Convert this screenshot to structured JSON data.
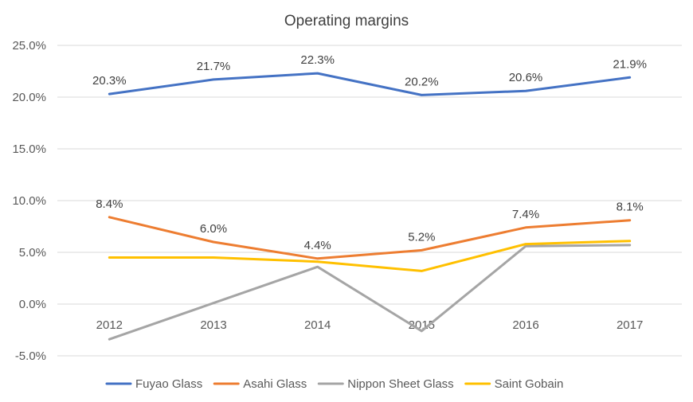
{
  "chart_data": {
    "type": "line",
    "title": "Operating margins",
    "xlabel": "",
    "ylabel": "",
    "categories": [
      "2012",
      "2013",
      "2014",
      "2015",
      "2016",
      "2017"
    ],
    "ylim": [
      -5,
      25
    ],
    "yticks": [
      -5,
      0,
      5,
      10,
      15,
      20,
      25
    ],
    "ytick_labels": [
      "-5.0%",
      "0.0%",
      "5.0%",
      "10.0%",
      "15.0%",
      "20.0%",
      "25.0%"
    ],
    "grid": true,
    "legend_position": "bottom",
    "series": [
      {
        "name": "Fuyao Glass",
        "color": "#4472C4",
        "values": [
          20.3,
          21.7,
          22.3,
          20.2,
          20.6,
          21.9
        ],
        "data_labels": [
          "20.3%",
          "21.7%",
          "22.3%",
          "20.2%",
          "20.6%",
          "21.9%"
        ]
      },
      {
        "name": "Asahi Glass",
        "color": "#ED7D31",
        "values": [
          8.4,
          6.0,
          4.4,
          5.2,
          7.4,
          8.1
        ],
        "data_labels": [
          "8.4%",
          "6.0%",
          "4.4%",
          "5.2%",
          "7.4%",
          "8.1%"
        ]
      },
      {
        "name": "Nippon Sheet Glass",
        "color": "#A5A5A5",
        "values": [
          -3.4,
          0.1,
          3.6,
          -2.6,
          5.6,
          5.7
        ]
      },
      {
        "name": "Saint Gobain",
        "color": "#FFC000",
        "values": [
          4.5,
          4.5,
          4.1,
          3.2,
          5.8,
          6.1
        ]
      }
    ]
  }
}
